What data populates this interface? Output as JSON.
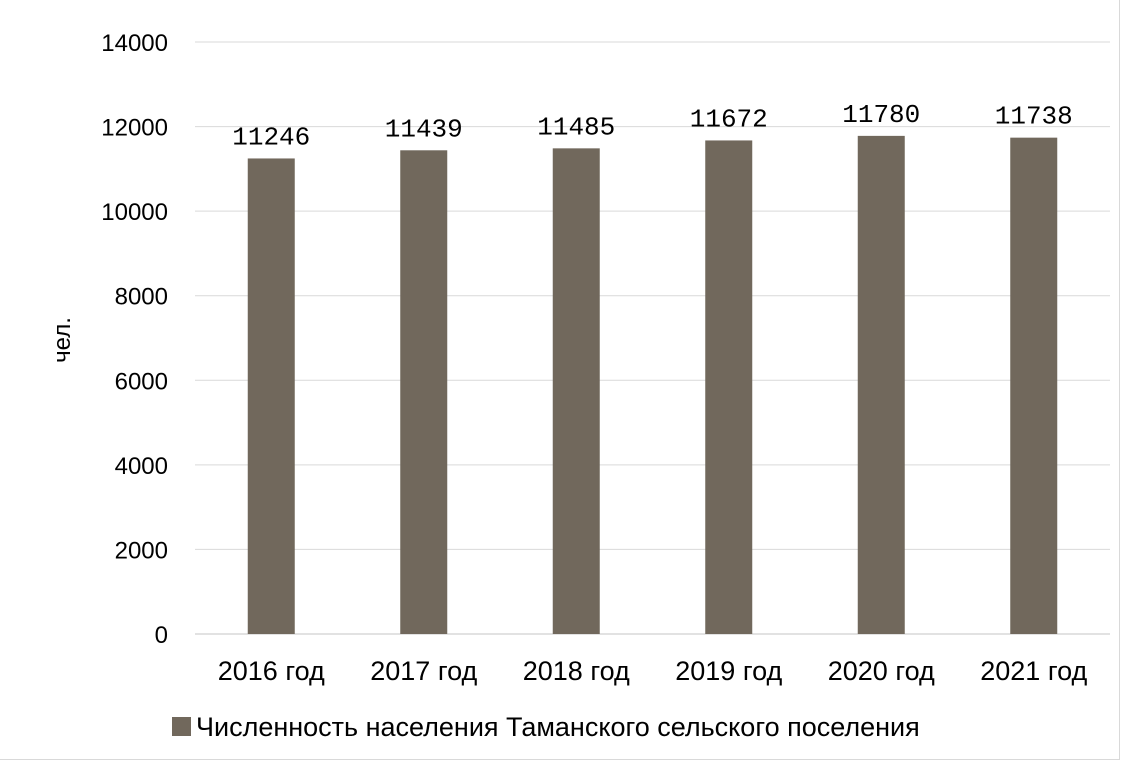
{
  "chart_data": {
    "type": "bar",
    "categories": [
      "2016 год",
      "2017 год",
      "2018 год",
      "2019 год",
      "2020 год",
      "2021 год"
    ],
    "series": [
      {
        "name": "Численность населения Таманского сельского поселения",
        "values": [
          11246,
          11439,
          11485,
          11672,
          11780,
          11738
        ],
        "color": "#71685c"
      }
    ],
    "data_labels": [
      "11246",
      "11439",
      "11485",
      "11672",
      "11780",
      "11738"
    ],
    "ylabel": "чел.",
    "xlabel": "",
    "ylim": [
      0,
      14000
    ],
    "yticks": [
      "0",
      "2000",
      "4000",
      "6000",
      "8000",
      "10000",
      "12000",
      "14000"
    ],
    "grid": true,
    "gridline_color": "#d9d9d9",
    "legend_position": "bottom"
  }
}
